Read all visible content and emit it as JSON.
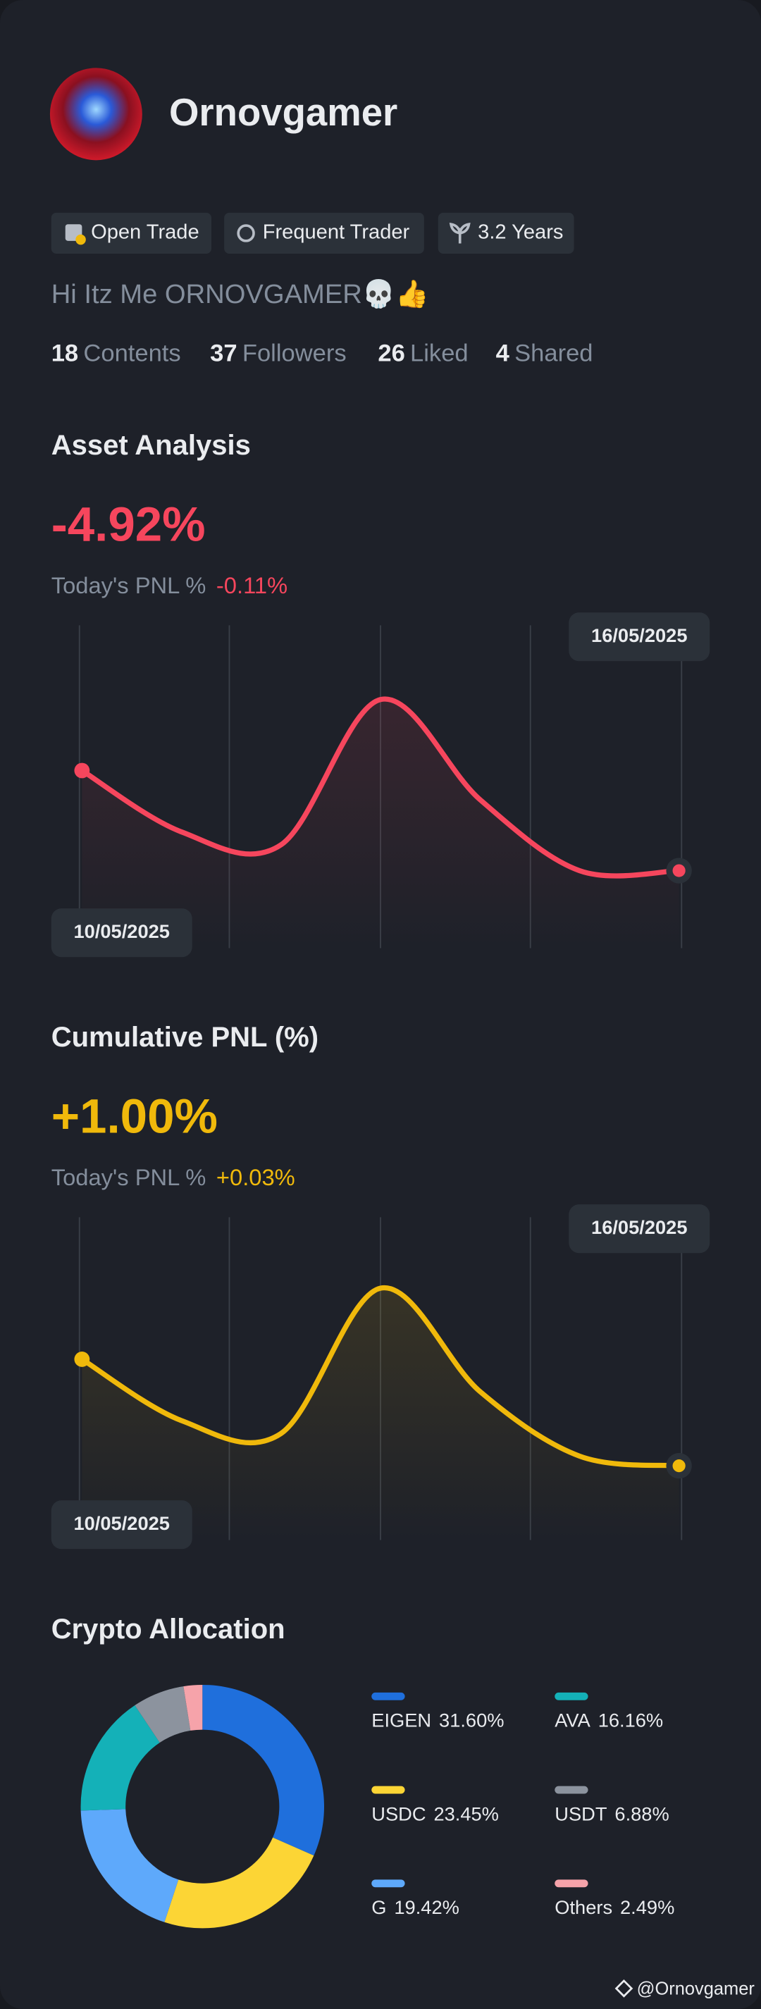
{
  "profile": {
    "name": "Ornovgamer",
    "badges": [
      "Open Trade",
      "Frequent Trader",
      "3.2 Years"
    ],
    "bio": "Hi Itz Me ORNOVGAMER💀👍",
    "stats": [
      {
        "count": "18",
        "label": "Contents"
      },
      {
        "count": "37",
        "label": "Followers"
      },
      {
        "count": "26",
        "label": "Liked"
      },
      {
        "count": "4",
        "label": "Shared"
      }
    ]
  },
  "chart_data": [
    {
      "type": "line",
      "title": "Asset Analysis",
      "headline": "-4.92%",
      "subtitle": "Today's PNL %",
      "change": "-0.11%",
      "categories": [
        "10/05/2025",
        null,
        null,
        null,
        null,
        null,
        "16/05/2025"
      ],
      "ylim": [
        0,
        100
      ],
      "series": [
        {
          "color": "#f6465d",
          "values": [
            55,
            36,
            32,
            77,
            46,
            24,
            24
          ]
        }
      ]
    },
    {
      "type": "line",
      "title": "Cumulative PNL (%)",
      "headline": "+1.00%",
      "subtitle": "Today's PNL %",
      "change": "+0.03%",
      "categories": [
        "10/05/2025",
        null,
        null,
        null,
        null,
        null,
        "16/05/2025"
      ],
      "ylim": [
        0,
        100
      ],
      "series": [
        {
          "color": "#f0b90b",
          "values": [
            56,
            37,
            33,
            78,
            46,
            26,
            23
          ]
        }
      ]
    },
    {
      "type": "pie",
      "title": "Crypto Allocation",
      "categories": [
        "EIGEN",
        "USDC",
        "G",
        "AVA",
        "USDT",
        "Others"
      ],
      "values": [
        31.6,
        23.45,
        19.42,
        16.16,
        6.88,
        2.49
      ],
      "value_labels": [
        "31.60%",
        "23.45%",
        "19.42%",
        "16.16%",
        "6.88%",
        "2.49%"
      ],
      "colors": [
        "#1f6fdc",
        "#fcd535",
        "#5ea9fb",
        "#14b1b8",
        "#8c939e",
        "#f6a3aa"
      ]
    }
  ],
  "watermark": "@Ornovgamer"
}
